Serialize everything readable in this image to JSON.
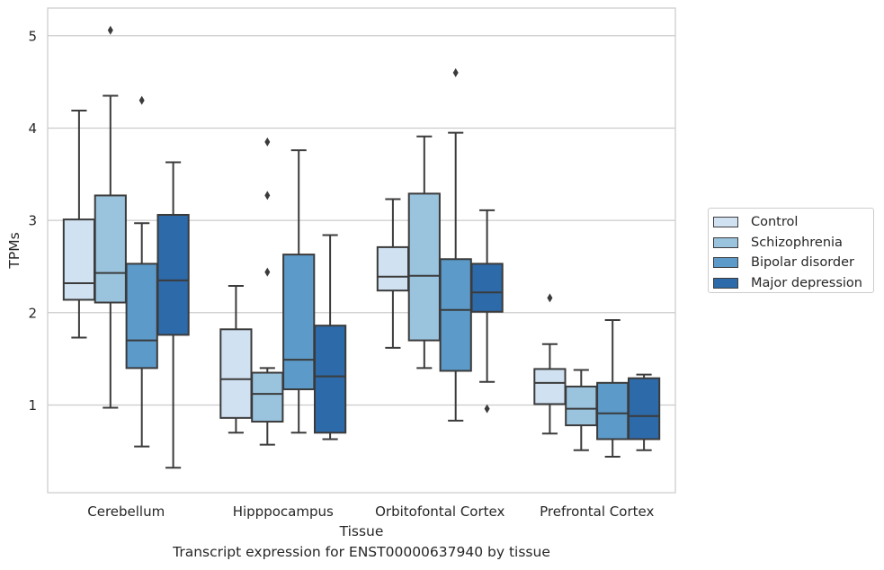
{
  "caption": "Transcript expression for ENST00000637940 by tissue",
  "chart_data": {
    "type": "boxplot",
    "xlabel": "Tissue",
    "ylabel": "TPMs",
    "categories": [
      "Cerebellum",
      "Hipppocampus",
      "Orbitofontal Cortex",
      "Prefrontal Cortex"
    ],
    "ylim": [
      0.05,
      5.3
    ],
    "yticks": [
      1,
      2,
      3,
      4,
      5
    ],
    "grid": "horizontal",
    "legend_position": "right",
    "series": [
      {
        "name": "Control",
        "color": "#d0e1f1",
        "boxes": [
          {
            "whislo": 1.73,
            "q1": 2.14,
            "med": 2.32,
            "q3": 3.01,
            "whishi": 4.19,
            "fliers": []
          },
          {
            "whislo": 0.7,
            "q1": 0.86,
            "med": 1.28,
            "q3": 1.82,
            "whishi": 2.29,
            "fliers": []
          },
          {
            "whislo": 1.62,
            "q1": 2.24,
            "med": 2.39,
            "q3": 2.71,
            "whishi": 3.23,
            "fliers": []
          },
          {
            "whislo": 0.69,
            "q1": 1.01,
            "med": 1.24,
            "q3": 1.39,
            "whishi": 1.66,
            "fliers": [
              2.16
            ]
          }
        ]
      },
      {
        "name": "Schizophrenia",
        "color": "#9ac3de",
        "boxes": [
          {
            "whislo": 0.97,
            "q1": 2.11,
            "med": 2.43,
            "q3": 3.27,
            "whishi": 4.35,
            "fliers": [
              5.06
            ]
          },
          {
            "whislo": 0.57,
            "q1": 0.82,
            "med": 1.12,
            "q3": 1.35,
            "whishi": 1.4,
            "fliers": [
              2.44,
              3.27,
              3.85
            ]
          },
          {
            "whislo": 1.4,
            "q1": 1.7,
            "med": 2.4,
            "q3": 3.29,
            "whishi": 3.91,
            "fliers": []
          },
          {
            "whislo": 0.51,
            "q1": 0.78,
            "med": 0.96,
            "q3": 1.2,
            "whishi": 1.38,
            "fliers": []
          }
        ]
      },
      {
        "name": "Bipolar disorder",
        "color": "#5b9ac9",
        "boxes": [
          {
            "whislo": 0.55,
            "q1": 1.4,
            "med": 1.7,
            "q3": 2.53,
            "whishi": 2.97,
            "fliers": [
              4.3
            ]
          },
          {
            "whislo": 0.7,
            "q1": 1.17,
            "med": 1.49,
            "q3": 2.63,
            "whishi": 3.76,
            "fliers": []
          },
          {
            "whislo": 0.83,
            "q1": 1.37,
            "med": 2.03,
            "q3": 2.58,
            "whishi": 3.95,
            "fliers": [
              4.6
            ]
          },
          {
            "whislo": 0.44,
            "q1": 0.63,
            "med": 0.91,
            "q3": 1.24,
            "whishi": 1.92,
            "fliers": []
          }
        ]
      },
      {
        "name": "Major depression",
        "color": "#2d6aa9",
        "boxes": [
          {
            "whislo": 0.32,
            "q1": 1.76,
            "med": 2.35,
            "q3": 3.06,
            "whishi": 3.63,
            "fliers": []
          },
          {
            "whislo": 0.63,
            "q1": 0.7,
            "med": 1.31,
            "q3": 1.86,
            "whishi": 2.84,
            "fliers": []
          },
          {
            "whislo": 1.25,
            "q1": 2.01,
            "med": 2.22,
            "q3": 2.53,
            "whishi": 3.11,
            "fliers": [
              0.96
            ]
          },
          {
            "whislo": 0.51,
            "q1": 0.63,
            "med": 0.88,
            "q3": 1.29,
            "whishi": 1.33,
            "fliers": []
          }
        ]
      }
    ]
  }
}
